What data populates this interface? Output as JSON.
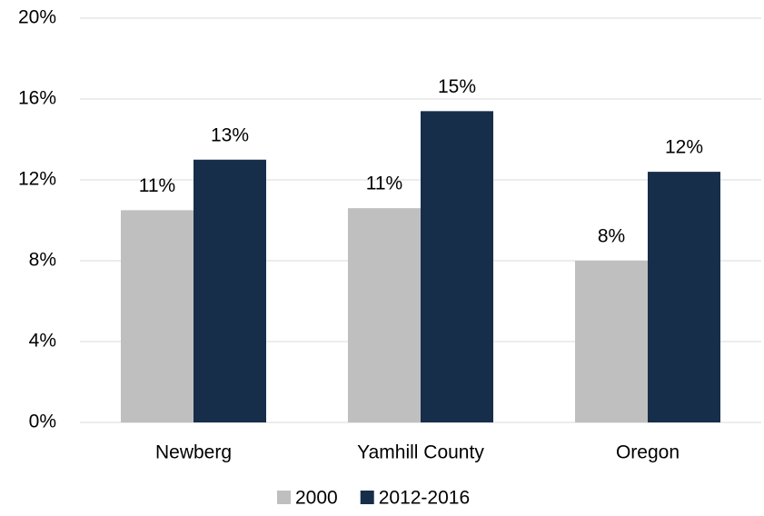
{
  "chart_data": {
    "type": "bar",
    "categories": [
      "Newberg",
      "Yamhill County",
      "Oregon"
    ],
    "series": [
      {
        "name": "2000",
        "color": "#bfbfbf",
        "values": [
          10.5,
          10.6,
          8.0
        ],
        "value_labels": [
          "11%",
          "11%",
          "8%"
        ]
      },
      {
        "name": "2012-2016",
        "color": "#172e4a",
        "values": [
          13.0,
          15.4,
          12.4
        ],
        "value_labels": [
          "13%",
          "15%",
          "12%"
        ]
      }
    ],
    "ylim": [
      0,
      20
    ],
    "yticks": [
      {
        "value": 0,
        "label": "0%"
      },
      {
        "value": 4,
        "label": "4%"
      },
      {
        "value": 8,
        "label": "8%"
      },
      {
        "value": 12,
        "label": "12%"
      },
      {
        "value": 16,
        "label": "16%"
      },
      {
        "value": 20,
        "label": "20%"
      }
    ],
    "grid": true,
    "legend": "bottom"
  }
}
